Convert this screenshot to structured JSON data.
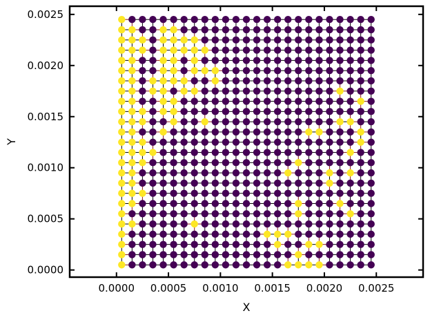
{
  "chart_data": {
    "type": "scatter",
    "xlabel": "X",
    "ylabel": "Y",
    "xlim": [
      -0.00045,
      0.00295
    ],
    "ylim": [
      -7e-05,
      0.00258
    ],
    "xticks": [
      {
        "value": 0.0005,
        "label": "0.0005"
      },
      {
        "value": 0.001,
        "label": "0.0010"
      },
      {
        "value": 0.0015,
        "label": "0.0015"
      },
      {
        "value": 0.002,
        "label": "0.0020"
      },
      {
        "value": 0.0025,
        "label": "0.0025"
      }
    ],
    "xtick_zero": {
      "value": 0.0,
      "label": "0.0000"
    },
    "yticks": [
      {
        "value": 0.0,
        "label": "0.0000"
      },
      {
        "value": 0.0005,
        "label": "0.0005"
      },
      {
        "value": 0.001,
        "label": "0.0010"
      },
      {
        "value": 0.0015,
        "label": "0.0015"
      },
      {
        "value": 0.002,
        "label": "0.0020"
      },
      {
        "value": 0.0025,
        "label": "0.0025"
      }
    ],
    "grid_x": {
      "start": 5e-05,
      "step": 0.0001,
      "count": 25
    },
    "grid_y": {
      "start": 5e-05,
      "step": 0.0001,
      "count": 25
    },
    "colors": {
      "class_0": "#fde725",
      "class_1": "#440154",
      "mesh_lines": "#000000",
      "mesh_edges_mixed": "#8b1a1a"
    },
    "rows_bottom_to_top": [
      "0111111111111111000011111",
      "0111111111111111101111111",
      "0111111111111110110011111",
      "0111111111111100011111111",
      "0011111011111111111111111",
      "0111111111111111101111011",
      "0011111111111111101110111",
      "0001111111111111111111111",
      "0011111111111111111101111",
      "0011111111111111011101011",
      "0001111111111111101111111",
      "0000111111111111111111011",
      "0001111111111111111111101",
      "0011011111111111110011101",
      "0001101101111111111110011",
      "0001001111111111111111111",
      "0011001111111111111111101",
      "0010010011111111111110111",
      "0010000110111111111111111",
      "0011001000111111111111111",
      "0011001011111111111111111",
      "0001000001111111111111111",
      "0001000011111111111111111",
      "0011001111111111111111111",
      "0111111111111111111111111"
    ]
  }
}
